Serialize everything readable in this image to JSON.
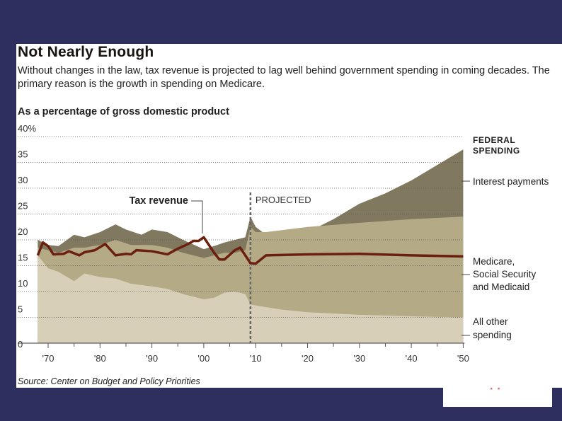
{
  "title": "Not Nearly Enough",
  "subtitle": "Without changes in the law, tax revenue is projected to lag well behind government spending in coming decades. The primary reason is the growth in spending on Medicare.",
  "unit_label": "As a percentage of gross domestic product",
  "source": "Source: Center on Budget and Policy Priorities",
  "notice_text": "is not supported",
  "colors": {
    "background": "#2f2f5f",
    "interest": "#807960",
    "entitlements": "#b4aa86",
    "other": "#d7cfb8",
    "tax": "#6b1f0f",
    "notice": "#d9707a"
  },
  "chart_data": {
    "type": "area",
    "ylim": [
      0,
      40
    ],
    "xlim": [
      1968,
      2050
    ],
    "y_ticks": [
      "40%",
      "35",
      "30",
      "25",
      "20",
      "15",
      "10",
      "5",
      "0"
    ],
    "y_tick_values": [
      40,
      35,
      30,
      25,
      20,
      15,
      10,
      5,
      0
    ],
    "x_ticks": [
      "'70",
      "'80",
      "'90",
      "'00",
      "'10",
      "'20",
      "'30",
      "'40",
      "'50"
    ],
    "x_tick_values": [
      1970,
      1980,
      1990,
      2000,
      2010,
      2020,
      2030,
      2040,
      2050
    ],
    "grid": true,
    "projected_from": 2009,
    "projected_label": "PROJECTED",
    "legend_heading": "FEDERAL SPENDING",
    "series": [
      {
        "name": "All other spending",
        "key": "other",
        "x": [
          1968,
          1970,
          1972,
          1975,
          1977,
          1980,
          1983,
          1986,
          1990,
          1993,
          1996,
          2000,
          2002,
          2004,
          2006,
          2008,
          2009,
          2010,
          2015,
          2020,
          2030,
          2040,
          2050
        ],
        "y": [
          17,
          14.5,
          13.8,
          12,
          13.5,
          12.8,
          12.5,
          11.5,
          11,
          10.5,
          9.5,
          8.5,
          8.8,
          9.8,
          10,
          9.5,
          7.5,
          7.3,
          6.5,
          6,
          5.5,
          5.2,
          5
        ]
      },
      {
        "name": "Medicare, Social Security and Medicaid",
        "key": "entitlements",
        "x": [
          1968,
          1970,
          1972,
          1975,
          1977,
          1980,
          1983,
          1986,
          1990,
          1993,
          1996,
          2000,
          2002,
          2004,
          2006,
          2008,
          2009,
          2010,
          2012,
          2020,
          2030,
          2040,
          2050
        ],
        "y": [
          18.5,
          18,
          17.5,
          18.5,
          18.5,
          19,
          20,
          19,
          19,
          18.5,
          17.5,
          16.5,
          17,
          17.5,
          17.5,
          18,
          22.5,
          21.5,
          21.5,
          22.5,
          23.3,
          24,
          24.5
        ]
      },
      {
        "name": "Interest payments",
        "key": "interest",
        "x": [
          1968,
          1970,
          1972,
          1975,
          1977,
          1980,
          1983,
          1985,
          1988,
          1990,
          1993,
          1996,
          2000,
          2002,
          2004,
          2006,
          2008,
          2009,
          2010,
          2012,
          2015,
          2020,
          2025,
          2030,
          2035,
          2040,
          2045,
          2050
        ],
        "y": [
          20,
          19,
          18.8,
          21,
          20.5,
          21.5,
          23,
          22,
          21,
          22,
          21.5,
          20,
          18.2,
          18.8,
          19.5,
          20,
          20.5,
          24.5,
          22.5,
          21,
          21,
          21.5,
          24,
          27,
          29,
          31.5,
          34.5,
          37.5
        ]
      },
      {
        "name": "Tax revenue",
        "key": "tax",
        "type": "line",
        "x": [
          1968,
          1969,
          1970,
          1971,
          1973,
          1974,
          1976,
          1977,
          1979,
          1981,
          1983,
          1985,
          1986,
          1987,
          1990,
          1993,
          1995,
          1997,
          1998,
          1999,
          2000,
          2002,
          2003,
          2004,
          2006,
          2007,
          2009,
          2010,
          2012,
          2020,
          2030,
          2040,
          2050
        ],
        "y": [
          17,
          19.5,
          18.8,
          17.2,
          17.3,
          17.8,
          17,
          17.6,
          18,
          19.2,
          17,
          17.3,
          17.2,
          18,
          17.8,
          17.2,
          18.3,
          19.2,
          19.8,
          19.8,
          20.5,
          17.5,
          16.2,
          16.2,
          18,
          18.5,
          15.5,
          15.4,
          17,
          17.2,
          17.3,
          17,
          16.8
        ]
      }
    ],
    "labels": {
      "tax": "Tax revenue",
      "interest": "Interest payments",
      "entitlements": [
        "Medicare,",
        "Social Security",
        "and Medicaid"
      ],
      "other": [
        "All other",
        "spending"
      ],
      "legend_heading": [
        "FEDERAL",
        "SPENDING"
      ]
    }
  }
}
